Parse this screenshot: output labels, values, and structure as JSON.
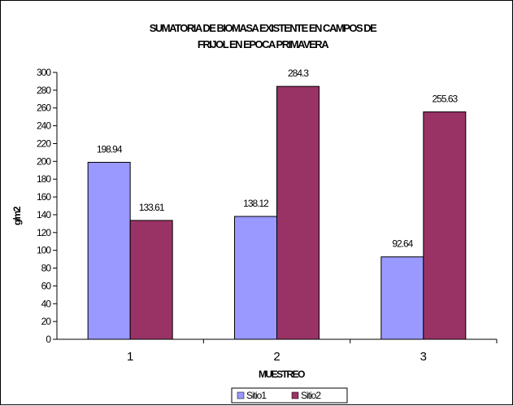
{
  "chart_data": {
    "type": "bar",
    "title": [
      "SUMATORIA DE BIOMASA EXISTENTE EN CAMPOS DE",
      "FRIJOL EN EPOCA PRIMAVERA"
    ],
    "xlabel": "MUESTREO",
    "ylabel": "g/m2",
    "categories": [
      "1",
      "2",
      "3"
    ],
    "ylim": [
      0,
      300
    ],
    "ytick_step": 20,
    "y_ticks": [
      "0",
      "20",
      "40",
      "60",
      "80",
      "100",
      "120",
      "140",
      "160",
      "180",
      "200",
      "220",
      "240",
      "260",
      "280",
      "300"
    ],
    "series": [
      {
        "name": "Sitio1",
        "color": "#9999ff",
        "values": [
          198.94,
          138.12,
          92.64
        ],
        "labels": [
          "198.94",
          "138.12",
          "92.64"
        ]
      },
      {
        "name": "Sitio2",
        "color": "#993366",
        "values": [
          133.61,
          284.3,
          255.63
        ],
        "labels": [
          "133.61",
          "284.3",
          "255.63"
        ]
      }
    ],
    "legend_position": "bottom",
    "grid": false
  }
}
